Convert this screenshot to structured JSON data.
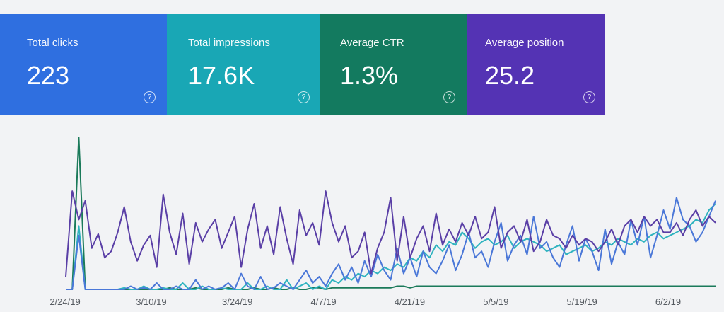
{
  "metrics": [
    {
      "label": "Total clicks",
      "value": "223",
      "color": "#2f6fe0"
    },
    {
      "label": "Total impressions",
      "value": "17.6K",
      "color": "#19a7b5"
    },
    {
      "label": "Average CTR",
      "value": "1.3%",
      "color": "#137a5f"
    },
    {
      "label": "Average position",
      "value": "25.2",
      "color": "#5433b4"
    }
  ],
  "help_icon": "?",
  "chart_data": {
    "type": "line",
    "x_ticks": [
      "2/24/19",
      "3/10/19",
      "3/24/19",
      "4/7/19",
      "4/21/19",
      "5/5/19",
      "5/19/19",
      "6/2/19"
    ],
    "series": [
      {
        "name": "Average position",
        "color": "#5a3fa6",
        "values": [
          8,
          62,
          44,
          56,
          26,
          35,
          20,
          24,
          36,
          52,
          30,
          18,
          28,
          34,
          14,
          60,
          36,
          22,
          48,
          16,
          42,
          30,
          38,
          44,
          26,
          36,
          46,
          14,
          38,
          54,
          26,
          40,
          22,
          52,
          32,
          16,
          50,
          34,
          42,
          28,
          62,
          42,
          30,
          40,
          20,
          24,
          36,
          10,
          26,
          36,
          58,
          18,
          46,
          20,
          32,
          40,
          24,
          48,
          28,
          38,
          30,
          42,
          34,
          46,
          32,
          36,
          52,
          26,
          36,
          40,
          30,
          44,
          24,
          30,
          44,
          34,
          32,
          26,
          34,
          28,
          32,
          30,
          24,
          30,
          38,
          28,
          40,
          44,
          36,
          46,
          40,
          44,
          36,
          36,
          42,
          34,
          44,
          50,
          40,
          46,
          42
        ]
      },
      {
        "name": "Total clicks",
        "color": "#4a77d8",
        "values": [
          0,
          0,
          34,
          0,
          0,
          0,
          0,
          0,
          0,
          0,
          2,
          0,
          1,
          0,
          4,
          0,
          0,
          2,
          0,
          0,
          6,
          0,
          2,
          0,
          1,
          4,
          0,
          10,
          2,
          0,
          8,
          0,
          1,
          4,
          2,
          0,
          6,
          12,
          4,
          8,
          2,
          10,
          16,
          6,
          14,
          4,
          18,
          8,
          22,
          12,
          6,
          26,
          10,
          20,
          8,
          24,
          14,
          10,
          18,
          28,
          12,
          22,
          36,
          20,
          24,
          14,
          30,
          42,
          18,
          28,
          34,
          22,
          46,
          26,
          30,
          20,
          14,
          28,
          40,
          18,
          32,
          24,
          12,
          38,
          16,
          30,
          22,
          44,
          28,
          46,
          20,
          34,
          50,
          38,
          58,
          44,
          40,
          30,
          36,
          46,
          56
        ]
      },
      {
        "name": "Total impressions",
        "color": "#2fb3bf",
        "values": [
          0,
          0,
          40,
          0,
          0,
          0,
          0,
          0,
          0,
          1,
          0,
          0,
          2,
          0,
          0,
          1,
          0,
          0,
          4,
          0,
          0,
          2,
          0,
          0,
          1,
          0,
          0,
          0,
          4,
          0,
          0,
          2,
          0,
          0,
          6,
          0,
          2,
          4,
          0,
          2,
          0,
          6,
          4,
          8,
          6,
          10,
          8,
          12,
          10,
          14,
          12,
          16,
          14,
          20,
          18,
          24,
          20,
          28,
          24,
          30,
          28,
          36,
          32,
          26,
          30,
          32,
          28,
          30,
          34,
          26,
          30,
          32,
          30,
          28,
          24,
          26,
          28,
          22,
          24,
          26,
          28,
          24,
          26,
          30,
          28,
          32,
          30,
          28,
          32,
          30,
          34,
          36,
          32,
          34,
          36,
          38,
          40,
          44,
          42,
          50,
          54
        ]
      },
      {
        "name": "Average CTR",
        "color": "#1b7a5a",
        "values": [
          0,
          0,
          96,
          0,
          0,
          0,
          0,
          0,
          0,
          0,
          0,
          0,
          0,
          0,
          0,
          0,
          1,
          0,
          0,
          0,
          1,
          0,
          0,
          0,
          0,
          1,
          0,
          0,
          0,
          1,
          0,
          0,
          1,
          0,
          0,
          1,
          0,
          0,
          1,
          1,
          0,
          1,
          1,
          1,
          1,
          1,
          1,
          1,
          1,
          1,
          1,
          2,
          2,
          1,
          2,
          2,
          2,
          2,
          2,
          2,
          2,
          2,
          2,
          2,
          2,
          2,
          2,
          2,
          2,
          2,
          2,
          2,
          2,
          2,
          2,
          2,
          2,
          2,
          2,
          2,
          2,
          2,
          2,
          2,
          2,
          2,
          2,
          2,
          2,
          2,
          2,
          2,
          2,
          2,
          2,
          2,
          2,
          2,
          2,
          2,
          2
        ]
      }
    ],
    "ylim": [
      0,
      100
    ],
    "grid": false,
    "legend": "none"
  }
}
